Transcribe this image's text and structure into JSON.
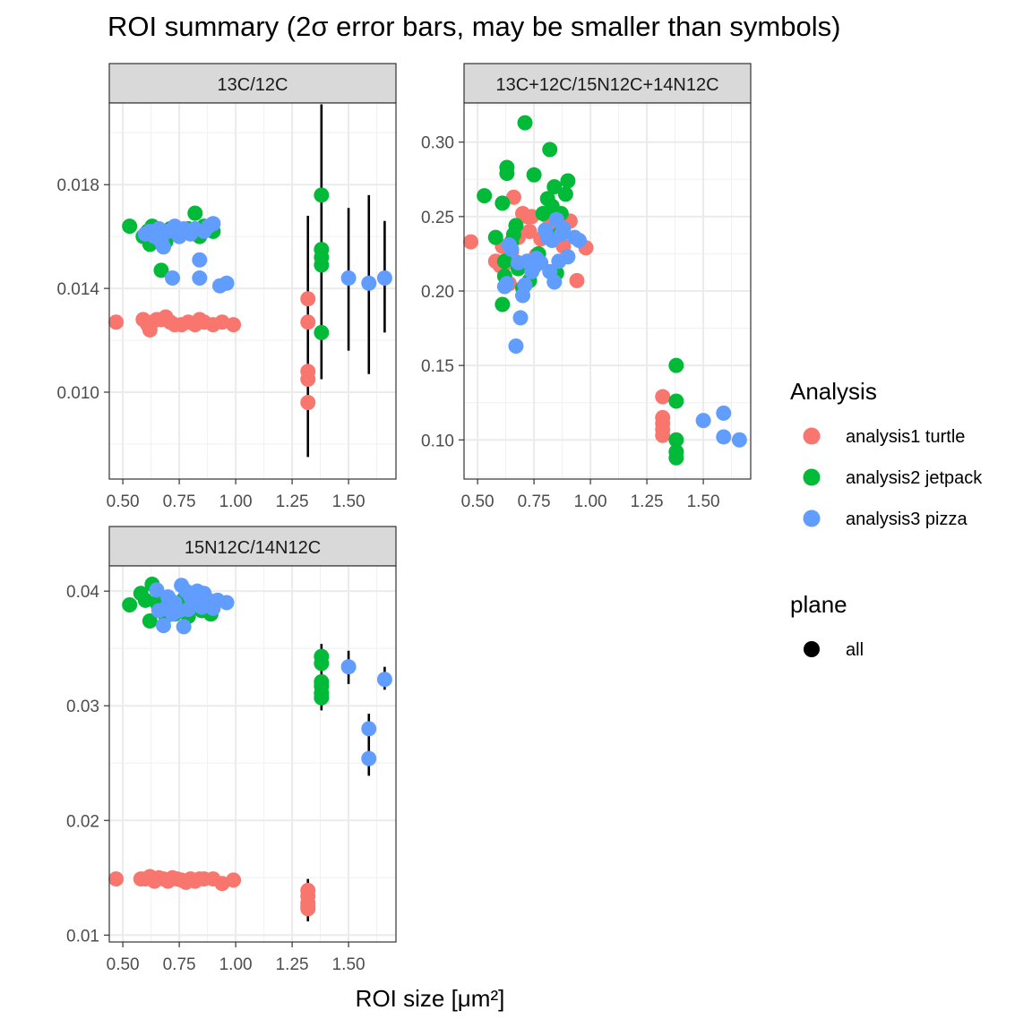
{
  "chart_data": {
    "type": "scatter",
    "title": "ROI summary (2σ error bars, may be smaller than symbols)",
    "xlabel": "ROI size [μm²]",
    "xlim": [
      0.44,
      1.71
    ],
    "x_ticks": [
      "0.50",
      "0.75",
      "1.00",
      "1.25",
      "1.50"
    ],
    "x_tick_values": [
      0.5,
      0.75,
      1.0,
      1.25,
      1.5
    ],
    "grid": true,
    "legend_position": "right",
    "legend": {
      "analysis_title": "Analysis",
      "analysis_entries": [
        {
          "label": "analysis1 turtle",
          "color": "#F8766D"
        },
        {
          "label": "analysis2 jetpack",
          "color": "#00BA38"
        },
        {
          "label": "analysis3 pizza",
          "color": "#619CFF"
        }
      ],
      "plane_title": "plane",
      "plane_entries": [
        {
          "label": "all",
          "color": "#000000"
        }
      ]
    },
    "series_colors": {
      "turtle": "#F8766D",
      "jetpack": "#00BA38",
      "pizza": "#619CFF"
    },
    "panels": [
      {
        "title": "13C/12C",
        "ylim": [
          0.00665,
          0.02115
        ],
        "y_ticks": [
          "0.010",
          "0.014",
          "0.018"
        ],
        "y_tick_values": [
          0.01,
          0.014,
          0.018
        ],
        "series": {
          "turtle": [
            [
              0.47,
              0.0127
            ],
            [
              0.59,
              0.0128
            ],
            [
              0.61,
              0.0126
            ],
            [
              0.62,
              0.0124
            ],
            [
              0.63,
              0.0127
            ],
            [
              0.65,
              0.0128
            ],
            [
              0.67,
              0.0128
            ],
            [
              0.69,
              0.0129
            ],
            [
              0.71,
              0.0127
            ],
            [
              0.73,
              0.0126
            ],
            [
              0.76,
              0.0126
            ],
            [
              0.79,
              0.0127
            ],
            [
              0.82,
              0.0126
            ],
            [
              0.84,
              0.0128
            ],
            [
              0.86,
              0.0127
            ],
            [
              0.9,
              0.0126
            ],
            [
              0.94,
              0.0127
            ],
            [
              0.99,
              0.0126
            ],
            [
              1.32,
              0.0136
            ],
            [
              1.32,
              0.0127
            ],
            [
              1.32,
              0.0108
            ],
            [
              1.32,
              0.0105
            ],
            [
              1.32,
              0.0096
            ]
          ],
          "jetpack": [
            [
              0.53,
              0.0164
            ],
            [
              0.59,
              0.016
            ],
            [
              0.61,
              0.0162
            ],
            [
              0.62,
              0.0157
            ],
            [
              0.63,
              0.0164
            ],
            [
              0.65,
              0.0162
            ],
            [
              0.67,
              0.0147
            ],
            [
              0.69,
              0.0158
            ],
            [
              0.71,
              0.0163
            ],
            [
              0.73,
              0.0161
            ],
            [
              0.76,
              0.0162
            ],
            [
              0.79,
              0.0163
            ],
            [
              0.82,
              0.0169
            ],
            [
              0.84,
              0.016
            ],
            [
              0.86,
              0.0164
            ],
            [
              0.9,
              0.0162
            ],
            [
              1.38,
              0.0176
            ],
            [
              1.38,
              0.0155
            ],
            [
              1.38,
              0.0152
            ],
            [
              1.38,
              0.0149
            ],
            [
              1.38,
              0.0123
            ]
          ],
          "pizza": [
            [
              0.6,
              0.0161
            ],
            [
              0.62,
              0.0162
            ],
            [
              0.64,
              0.016
            ],
            [
              0.66,
              0.0163
            ],
            [
              0.67,
              0.0158
            ],
            [
              0.68,
              0.0156
            ],
            [
              0.7,
              0.0162
            ],
            [
              0.72,
              0.0144
            ],
            [
              0.73,
              0.0164
            ],
            [
              0.75,
              0.016
            ],
            [
              0.77,
              0.0163
            ],
            [
              0.8,
              0.0161
            ],
            [
              0.82,
              0.0163
            ],
            [
              0.84,
              0.0151
            ],
            [
              0.84,
              0.0144
            ],
            [
              0.86,
              0.0162
            ],
            [
              0.88,
              0.0164
            ],
            [
              0.9,
              0.0165
            ],
            [
              0.93,
              0.0141
            ],
            [
              0.96,
              0.0142
            ],
            [
              1.5,
              0.0144
            ],
            [
              1.59,
              0.0142
            ],
            [
              1.66,
              0.0144
            ]
          ]
        },
        "error_bars": [
          [
            1.32,
            0.0075,
            0.0168
          ],
          [
            1.38,
            0.0105,
            0.0211
          ],
          [
            1.5,
            0.0116,
            0.0171
          ],
          [
            1.59,
            0.0107,
            0.0176
          ],
          [
            1.66,
            0.0123,
            0.0166
          ]
        ]
      },
      {
        "title": "13C+12C/15N12C+14N12C",
        "ylim": [
          0.0737,
          0.3263
        ],
        "y_ticks": [
          "0.10",
          "0.15",
          "0.20",
          "0.25",
          "0.30"
        ],
        "y_tick_values": [
          0.1,
          0.15,
          0.2,
          0.25,
          0.3
        ],
        "series": {
          "turtle": [
            [
              0.47,
              0.233
            ],
            [
              0.58,
              0.22
            ],
            [
              0.6,
              0.217
            ],
            [
              0.61,
              0.23
            ],
            [
              0.62,
              0.218
            ],
            [
              0.64,
              0.205
            ],
            [
              0.65,
              0.226
            ],
            [
              0.66,
              0.263
            ],
            [
              0.68,
              0.236
            ],
            [
              0.7,
              0.252
            ],
            [
              0.72,
              0.25
            ],
            [
              0.73,
              0.24
            ],
            [
              0.74,
              0.25
            ],
            [
              0.76,
              0.224
            ],
            [
              0.78,
              0.235
            ],
            [
              0.81,
              0.25
            ],
            [
              0.83,
              0.244
            ],
            [
              0.85,
              0.236
            ],
            [
              0.88,
              0.23
            ],
            [
              0.91,
              0.247
            ],
            [
              0.94,
              0.207
            ],
            [
              0.98,
              0.229
            ],
            [
              1.32,
              0.129
            ],
            [
              1.32,
              0.115
            ],
            [
              1.32,
              0.111
            ],
            [
              1.32,
              0.107
            ],
            [
              1.32,
              0.103
            ]
          ],
          "jetpack": [
            [
              0.53,
              0.264
            ],
            [
              0.58,
              0.236
            ],
            [
              0.61,
              0.191
            ],
            [
              0.61,
              0.259
            ],
            [
              0.62,
              0.21
            ],
            [
              0.62,
              0.22
            ],
            [
              0.63,
              0.283
            ],
            [
              0.63,
              0.279
            ],
            [
              0.65,
              0.233
            ],
            [
              0.66,
              0.238
            ],
            [
              0.67,
              0.244
            ],
            [
              0.68,
              0.215
            ],
            [
              0.7,
              0.202
            ],
            [
              0.71,
              0.313
            ],
            [
              0.73,
              0.207
            ],
            [
              0.75,
              0.278
            ],
            [
              0.77,
              0.225
            ],
            [
              0.79,
              0.252
            ],
            [
              0.81,
              0.262
            ],
            [
              0.82,
              0.295
            ],
            [
              0.83,
              0.257
            ],
            [
              0.84,
              0.27
            ],
            [
              0.85,
              0.212
            ],
            [
              0.86,
              0.238
            ],
            [
              0.87,
              0.252
            ],
            [
              0.89,
              0.265
            ],
            [
              0.9,
              0.274
            ],
            [
              1.38,
              0.15
            ],
            [
              1.38,
              0.126
            ],
            [
              1.38,
              0.1
            ],
            [
              1.38,
              0.092
            ],
            [
              1.38,
              0.088
            ]
          ],
          "pizza": [
            [
              0.62,
              0.203
            ],
            [
              0.63,
              0.205
            ],
            [
              0.64,
              0.231
            ],
            [
              0.65,
              0.228
            ],
            [
              0.67,
              0.163
            ],
            [
              0.68,
              0.219
            ],
            [
              0.69,
              0.182
            ],
            [
              0.7,
              0.197
            ],
            [
              0.71,
              0.204
            ],
            [
              0.72,
              0.22
            ],
            [
              0.74,
              0.213
            ],
            [
              0.75,
              0.216
            ],
            [
              0.76,
              0.222
            ],
            [
              0.78,
              0.219
            ],
            [
              0.8,
              0.241
            ],
            [
              0.81,
              0.236
            ],
            [
              0.82,
              0.213
            ],
            [
              0.83,
              0.234
            ],
            [
              0.84,
              0.206
            ],
            [
              0.85,
              0.248
            ],
            [
              0.86,
              0.22
            ],
            [
              0.87,
              0.238
            ],
            [
              0.88,
              0.242
            ],
            [
              0.9,
              0.223
            ],
            [
              0.93,
              0.236
            ],
            [
              0.95,
              0.234
            ],
            [
              1.5,
              0.113
            ],
            [
              1.59,
              0.118
            ],
            [
              1.59,
              0.102
            ],
            [
              1.66,
              0.1
            ]
          ]
        },
        "error_bars": []
      },
      {
        "title": "15N12C/14N12C",
        "ylim": [
          0.0094,
          0.0422
        ],
        "y_ticks": [
          "0.01",
          "0.02",
          "0.03",
          "0.04"
        ],
        "y_tick_values": [
          0.01,
          0.02,
          0.03,
          0.04
        ],
        "series": {
          "turtle": [
            [
              0.47,
              0.0149
            ],
            [
              0.58,
              0.0149
            ],
            [
              0.6,
              0.0149
            ],
            [
              0.62,
              0.0151
            ],
            [
              0.63,
              0.0149
            ],
            [
              0.64,
              0.0147
            ],
            [
              0.66,
              0.015
            ],
            [
              0.68,
              0.0149
            ],
            [
              0.7,
              0.0147
            ],
            [
              0.72,
              0.015
            ],
            [
              0.74,
              0.0149
            ],
            [
              0.76,
              0.0148
            ],
            [
              0.78,
              0.0146
            ],
            [
              0.8,
              0.0149
            ],
            [
              0.82,
              0.0147
            ],
            [
              0.84,
              0.0149
            ],
            [
              0.86,
              0.0149
            ],
            [
              0.9,
              0.0149
            ],
            [
              0.94,
              0.0145
            ],
            [
              0.99,
              0.0148
            ],
            [
              1.32,
              0.0139
            ],
            [
              1.32,
              0.0134
            ],
            [
              1.32,
              0.0128
            ],
            [
              1.32,
              0.0125
            ],
            [
              1.32,
              0.0123
            ]
          ],
          "jetpack": [
            [
              0.53,
              0.0388
            ],
            [
              0.58,
              0.0398
            ],
            [
              0.6,
              0.0392
            ],
            [
              0.62,
              0.0374
            ],
            [
              0.63,
              0.0406
            ],
            [
              0.65,
              0.039
            ],
            [
              0.66,
              0.0385
            ],
            [
              0.67,
              0.0392
            ],
            [
              0.69,
              0.0378
            ],
            [
              0.71,
              0.0389
            ],
            [
              0.73,
              0.038
            ],
            [
              0.75,
              0.0389
            ],
            [
              0.77,
              0.0393
            ],
            [
              0.79,
              0.0378
            ],
            [
              0.81,
              0.0386
            ],
            [
              0.83,
              0.0395
            ],
            [
              0.85,
              0.0383
            ],
            [
              0.87,
              0.0386
            ],
            [
              0.89,
              0.038
            ],
            [
              1.38,
              0.0343
            ],
            [
              1.38,
              0.0337
            ],
            [
              1.38,
              0.0321
            ],
            [
              1.38,
              0.0317
            ],
            [
              1.38,
              0.0311
            ],
            [
              1.38,
              0.0307
            ]
          ],
          "pizza": [
            [
              0.65,
              0.0401
            ],
            [
              0.66,
              0.0383
            ],
            [
              0.68,
              0.037
            ],
            [
              0.69,
              0.0385
            ],
            [
              0.7,
              0.0395
            ],
            [
              0.72,
              0.038
            ],
            [
              0.73,
              0.039
            ],
            [
              0.75,
              0.0383
            ],
            [
              0.76,
              0.0405
            ],
            [
              0.77,
              0.0369
            ],
            [
              0.78,
              0.04
            ],
            [
              0.79,
              0.0384
            ],
            [
              0.8,
              0.0395
            ],
            [
              0.82,
              0.039
            ],
            [
              0.83,
              0.04
            ],
            [
              0.85,
              0.0386
            ],
            [
              0.86,
              0.0398
            ],
            [
              0.88,
              0.0392
            ],
            [
              0.9,
              0.0385
            ],
            [
              0.92,
              0.0392
            ],
            [
              0.96,
              0.039
            ],
            [
              1.5,
              0.0334
            ],
            [
              1.59,
              0.028
            ],
            [
              1.59,
              0.0254
            ],
            [
              1.66,
              0.0323
            ]
          ]
        },
        "error_bars": [
          [
            1.32,
            0.0112,
            0.0149
          ],
          [
            1.38,
            0.0296,
            0.0354
          ],
          [
            1.5,
            0.0319,
            0.0348
          ],
          [
            1.59,
            0.0239,
            0.0293
          ],
          [
            1.66,
            0.0314,
            0.0334
          ]
        ]
      }
    ]
  }
}
